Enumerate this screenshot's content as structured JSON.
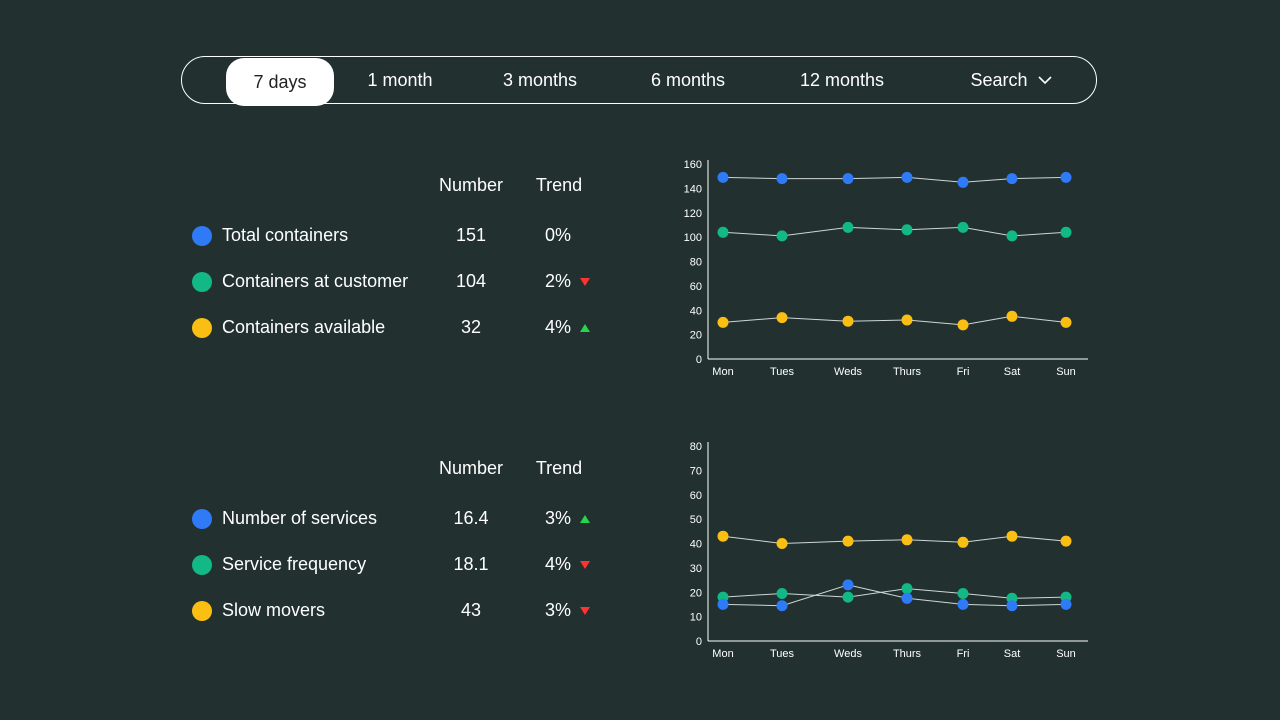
{
  "tabs": [
    {
      "label": "7 days",
      "active": true
    },
    {
      "label": "1 month",
      "active": false
    },
    {
      "label": "3 months",
      "active": false
    },
    {
      "label": "6 months",
      "active": false
    },
    {
      "label": "12 months",
      "active": false
    }
  ],
  "search_label": "Search",
  "colors": {
    "blue": "#2f7af7",
    "green": "#12b886",
    "yellow": "#fbbf14",
    "up": "#22d84a",
    "down": "#ff3333"
  },
  "section1": {
    "header_number": "Number",
    "header_trend": "Trend",
    "rows": [
      {
        "label": "Total containers",
        "number": "151",
        "trend": "0%",
        "direction": "none",
        "color": "#2f7af7"
      },
      {
        "label": "Containers at customer",
        "number": "104",
        "trend": "2%",
        "direction": "down",
        "color": "#12b886"
      },
      {
        "label": "Containers available",
        "number": "32",
        "trend": "4%",
        "direction": "up",
        "color": "#fbbf14"
      }
    ]
  },
  "section2": {
    "header_number": "Number",
    "header_trend": "Trend",
    "rows": [
      {
        "label": "Number of services",
        "number": "16.4",
        "trend": "3%",
        "direction": "up",
        "color": "#2f7af7"
      },
      {
        "label": "Service frequency",
        "number": "18.1",
        "trend": "4%",
        "direction": "down",
        "color": "#12b886"
      },
      {
        "label": "Slow movers",
        "number": "43",
        "trend": "3%",
        "direction": "down",
        "color": "#fbbf14"
      }
    ]
  },
  "chart_data": [
    {
      "type": "line",
      "categories": [
        "Mon",
        "Tues",
        "Weds",
        "Thurs",
        "Fri",
        "Sat",
        "Sun"
      ],
      "ylim": [
        0,
        160
      ],
      "yticks": [
        0,
        20,
        40,
        60,
        80,
        100,
        120,
        140,
        160
      ],
      "series": [
        {
          "color": "#2f7af7",
          "values": [
            149,
            148,
            148,
            149,
            145,
            148,
            149
          ]
        },
        {
          "color": "#12b886",
          "values": [
            104,
            101,
            108,
            106,
            108,
            101,
            104
          ]
        },
        {
          "color": "#fbbf14",
          "values": [
            30,
            34,
            31,
            32,
            28,
            35,
            30
          ]
        }
      ]
    },
    {
      "type": "line",
      "categories": [
        "Mon",
        "Tues",
        "Weds",
        "Thurs",
        "Fri",
        "Sat",
        "Sun"
      ],
      "ylim": [
        0,
        80
      ],
      "yticks": [
        0,
        10,
        20,
        30,
        40,
        50,
        60,
        70,
        80
      ],
      "series": [
        {
          "color": "#fbbf14",
          "values": [
            43,
            40,
            41,
            41.5,
            40.5,
            43,
            41
          ]
        },
        {
          "color": "#12b886",
          "values": [
            18,
            19.5,
            18,
            21.5,
            19.5,
            17.5,
            18
          ]
        },
        {
          "color": "#2f7af7",
          "values": [
            15,
            14.5,
            23,
            17.5,
            15,
            14.5,
            15
          ]
        }
      ]
    }
  ]
}
